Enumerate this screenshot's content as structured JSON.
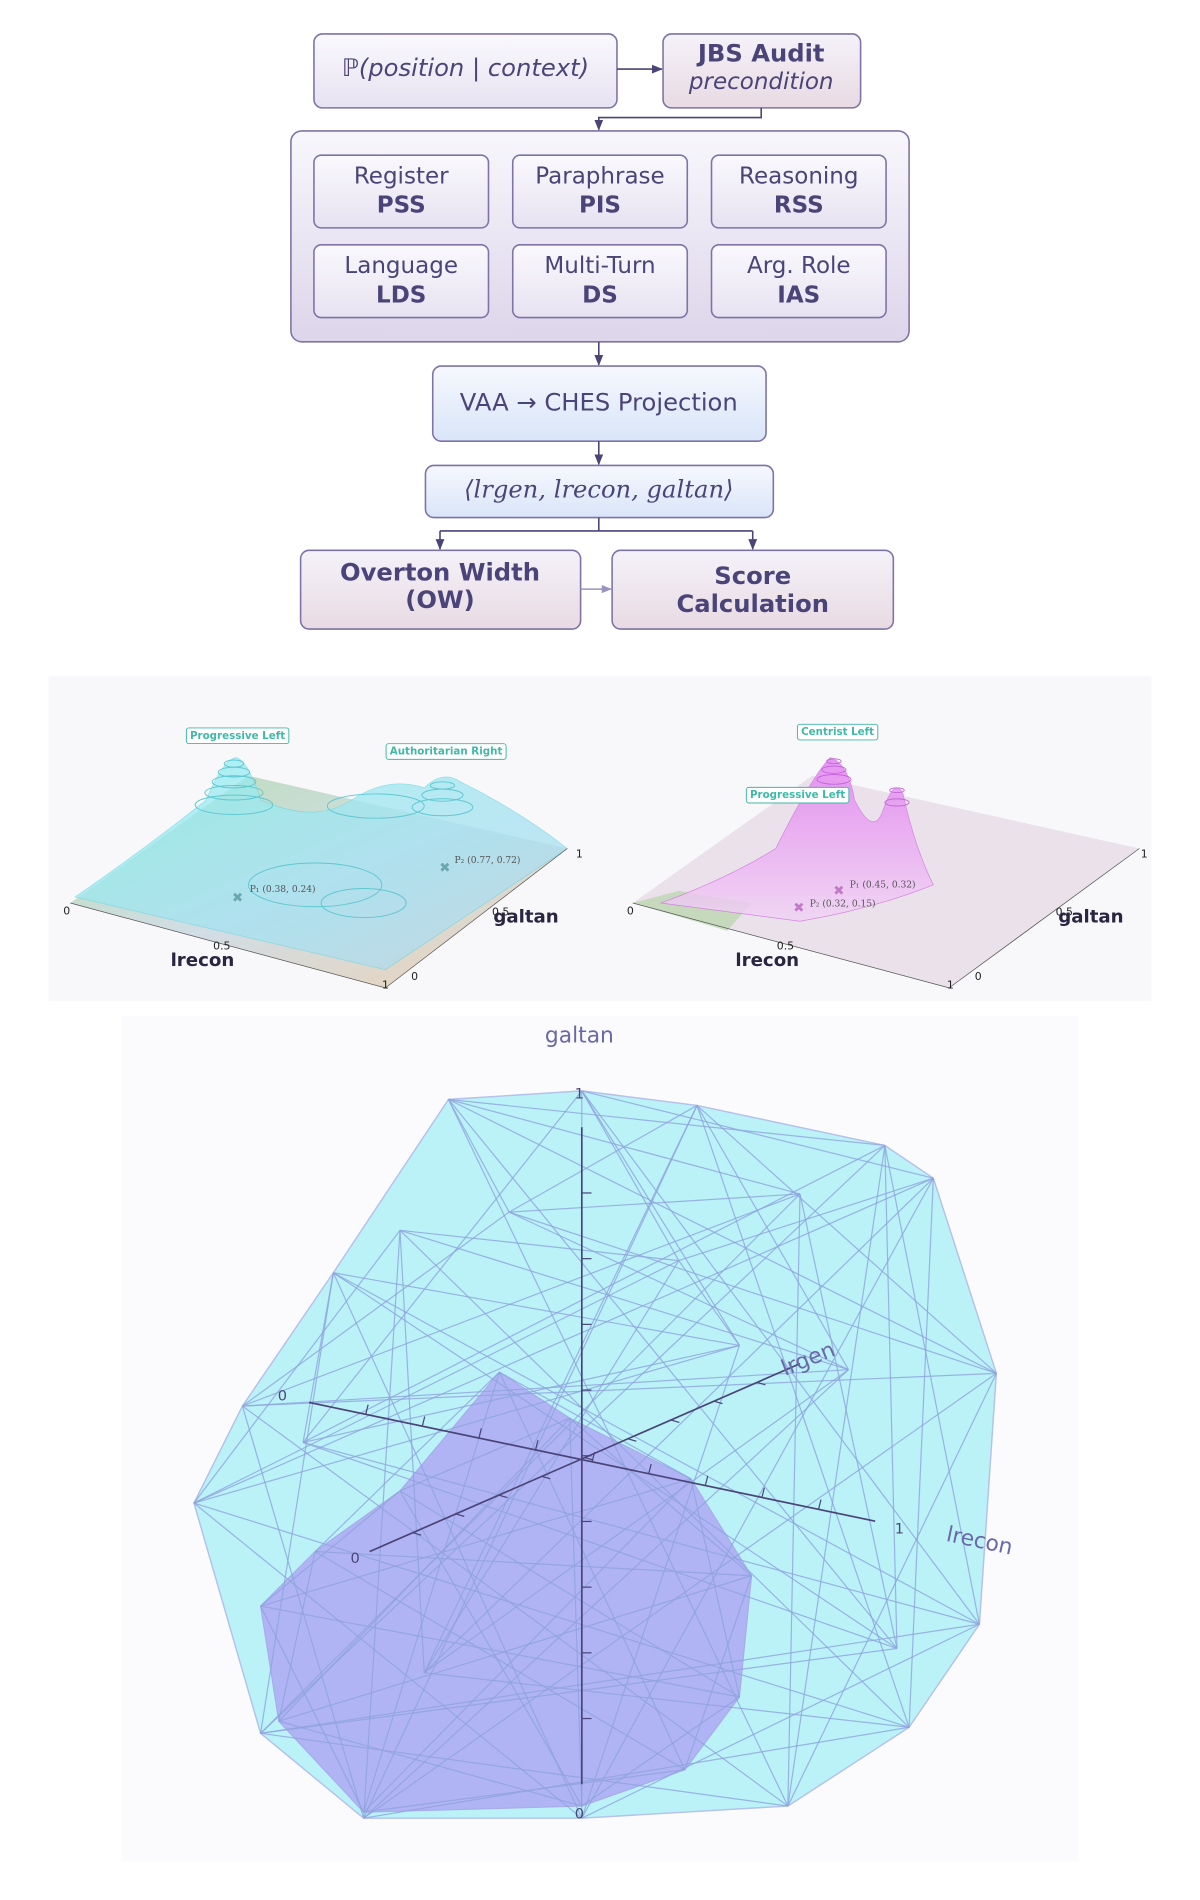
{
  "flowchart": {
    "input": "ℙ(position | context)",
    "audit": {
      "title": "JBS Audit",
      "subtitle": "precondition"
    },
    "probes": [
      {
        "label": "Register",
        "code": "PSS"
      },
      {
        "label": "Paraphrase",
        "code": "PIS"
      },
      {
        "label": "Reasoning",
        "code": "RSS"
      },
      {
        "label": "Language",
        "code": "LDS"
      },
      {
        "label": "Multi-Turn",
        "code": "DS"
      },
      {
        "label": "Arg. Role",
        "code": "IAS"
      }
    ],
    "projection": "VAA → CHES Projection",
    "coordinates": "⟨lrgen, lrecon, galtan⟩",
    "overton": [
      "Overton Width",
      "(OW)"
    ],
    "score": [
      "Score",
      "Calculation"
    ]
  },
  "surface_plots": [
    {
      "x_label": "lrecon",
      "y_label": "galtan",
      "x_ticks": [
        "0",
        "0.5",
        "1"
      ],
      "y_ticks": [
        "0",
        "0.5",
        "1"
      ],
      "peaks": [
        "Progressive Left",
        "Authoritarian Right"
      ],
      "points": [
        "P₁ (0.38, 0.24)",
        "P₂ (0.77, 0.72)"
      ]
    },
    {
      "x_label": "lrecon",
      "y_label": "galtan",
      "x_ticks": [
        "0",
        "0.5",
        "1"
      ],
      "y_ticks": [
        "0",
        "0.5",
        "1"
      ],
      "peaks": [
        "Centrist Left",
        "Progressive Left"
      ],
      "points": [
        "P₁ (0.45, 0.32)",
        "P₂ (0.32, 0.15)"
      ]
    }
  ],
  "hull_plot": {
    "axes": {
      "vertical": "galtan",
      "depth": "lrgen",
      "horizontal": "lrecon"
    },
    "vertical_ticks": [
      "1",
      "0"
    ],
    "horizontal_ticks": [
      "0",
      "1"
    ],
    "depth_ticks": [
      "0"
    ]
  }
}
